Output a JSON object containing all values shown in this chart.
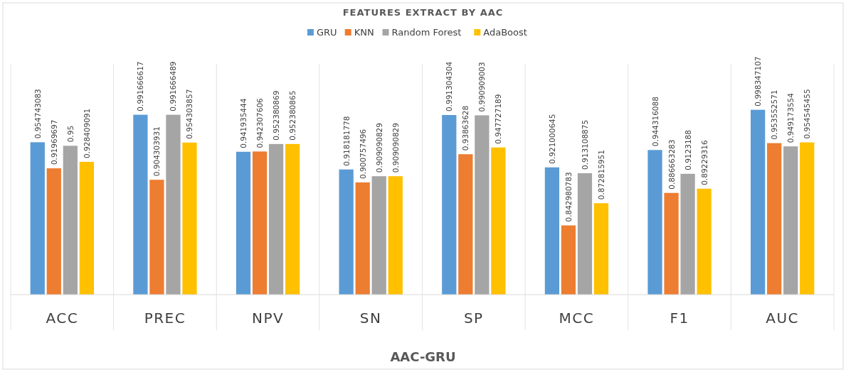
{
  "chart_data": {
    "type": "bar",
    "title": "FEATURES EXTRACT BY AAC",
    "xlabel": "AAC-GRU",
    "categories": [
      "ACC",
      "PREC",
      "NPV",
      "SN",
      "SP",
      "MCC",
      "F1",
      "AUC"
    ],
    "series": [
      {
        "name": "GRU",
        "color": "#5b9bd5",
        "values": [
          0.954743083,
          0.991666617,
          0.941935444,
          0.918181778,
          0.991304304,
          0.921000645,
          0.944316088,
          0.998347107
        ]
      },
      {
        "name": "KNN",
        "color": "#ed7d31",
        "values": [
          0.91969697,
          0.904303931,
          0.942307606,
          0.900757496,
          0.93863628,
          0.842980783,
          0.886663283,
          0.953552571
        ]
      },
      {
        "name": "Random Forest",
        "color": "#a5a5a5",
        "values": [
          0.95,
          0.991666489,
          0.952380869,
          0.909090829,
          0.990909003,
          0.913108875,
          0.9123188,
          0.949173554
        ]
      },
      {
        "name": "AdaBoost",
        "color": "#ffc000",
        "values": [
          0.928409091,
          0.954303857,
          0.952380865,
          0.909090829,
          0.947727189,
          0.872815951,
          0.89229316,
          0.954545455
        ]
      }
    ],
    "ylim": [
      0.75,
      1.06
    ],
    "data_labels": true,
    "legend": "top"
  }
}
